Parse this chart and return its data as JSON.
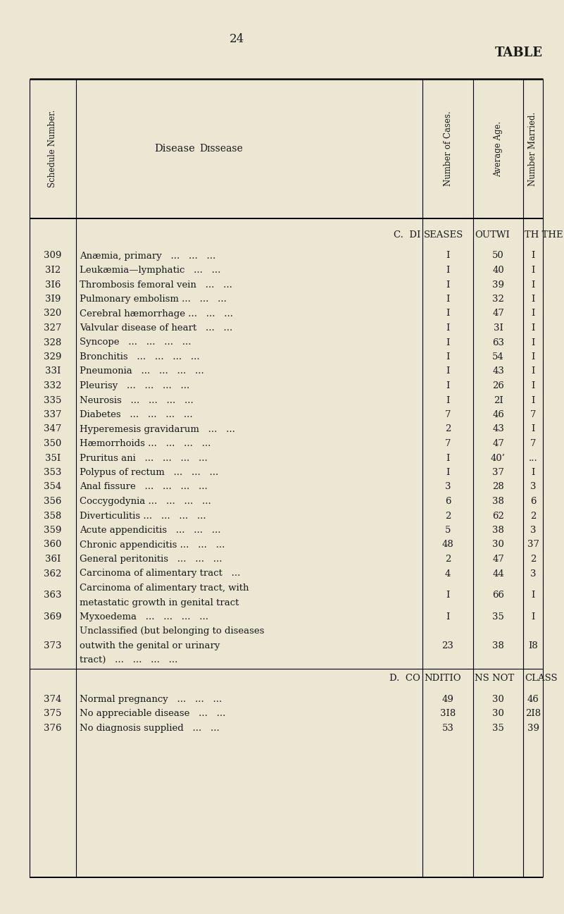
{
  "page_number": "24",
  "title": "TABLE",
  "bg_color": "#ebe7d3",
  "text_color": "#1a1a1a",
  "rows_c": [
    {
      "num": "309",
      "disease": "Anæmia, primary   ...   ...   ...",
      "cases": "I",
      "age": "50",
      "married": "I"
    },
    {
      "num": "3I2",
      "disease": "Leukæmia—lymphatic   ...   ...",
      "cases": "I",
      "age": "40",
      "married": "I"
    },
    {
      "num": "3I6",
      "disease": "Thrombosis femoral vein   ...   ...",
      "cases": "I",
      "age": "39",
      "married": "I"
    },
    {
      "num": "3I9",
      "disease": "Pulmonary embolism ...   ...   ...",
      "cases": "I",
      "age": "32",
      "married": "I"
    },
    {
      "num": "320",
      "disease": "Cerebral hæmorrhage ...   ...   ...",
      "cases": "I",
      "age": "47",
      "married": "I"
    },
    {
      "num": "327",
      "disease": "Valvular disease of heart   ...   ...",
      "cases": "I",
      "age": "3I",
      "married": "I"
    },
    {
      "num": "328",
      "disease": "Syncope   ...   ...   ...   ...",
      "cases": "I",
      "age": "63",
      "married": "I"
    },
    {
      "num": "329",
      "disease": "Bronchitis   ...   ...   ...   ...",
      "cases": "I",
      "age": "54",
      "married": "I"
    },
    {
      "num": "33I",
      "disease": "Pneumonia   ...   ...   ...   ...",
      "cases": "I",
      "age": "43",
      "married": "I"
    },
    {
      "num": "332",
      "disease": "Pleurisy   ...   ...   ...   ...",
      "cases": "I",
      "age": "26",
      "married": "I"
    },
    {
      "num": "335",
      "disease": "Neurosis   ...   ...   ...   ...",
      "cases": "I",
      "age": "2I",
      "married": "I"
    },
    {
      "num": "337",
      "disease": "Diabetes   ...   ...   ...   ...",
      "cases": "7",
      "age": "46",
      "married": "7"
    },
    {
      "num": "347",
      "disease": "Hyperemesis gravidarum   ...   ...",
      "cases": "2",
      "age": "43",
      "married": "I"
    },
    {
      "num": "350",
      "disease": "Hæmorrhoids ...   ...   ...   ...",
      "cases": "7",
      "age": "47",
      "married": "7"
    },
    {
      "num": "35I",
      "disease": "Pruritus ani   ...   ...   ...   ...",
      "cases": "I",
      "age": "40’",
      "married": "..."
    },
    {
      "num": "353",
      "disease": "Polypus of rectum   ...   ...   ...",
      "cases": "I",
      "age": "37",
      "married": "I"
    },
    {
      "num": "354",
      "disease": "Anal fissure   ...   ...   ...   ...",
      "cases": "3",
      "age": "28",
      "married": "3"
    },
    {
      "num": "356",
      "disease": "Coccygodynia ...   ...   ...   ...",
      "cases": "6",
      "age": "38",
      "married": "6"
    },
    {
      "num": "358",
      "disease": "Diverticulitis ...   ...   ...   ...",
      "cases": "2",
      "age": "62",
      "married": "2"
    },
    {
      "num": "359",
      "disease": "Acute appendicitis   ...   ...   ...",
      "cases": "5",
      "age": "38",
      "married": "3"
    },
    {
      "num": "360",
      "disease": "Chronic appendicitis ...   ...   ...",
      "cases": "48",
      "age": "30",
      "married": "37"
    },
    {
      "num": "36I",
      "disease": "General peritonitis   ...   ...   ...",
      "cases": "2",
      "age": "47",
      "married": "2"
    },
    {
      "num": "362",
      "disease": "Carcinoma of alimentary tract   ...",
      "cases": "4",
      "age": "44",
      "married": "3"
    },
    {
      "num": "363",
      "disease": "Carcinoma of alimentary tract, with\n        metastatic growth in genital tract",
      "cases": "I",
      "age": "66",
      "married": "I"
    },
    {
      "num": "369",
      "disease": "Myxoedema   ...   ...   ...   ...",
      "cases": "I",
      "age": "35",
      "married": "I"
    },
    {
      "num": "373",
      "disease": "Unclassified (but belonging to diseases\n        outwith the genital or urinary\n        tract)   ...   ...   ...   ...",
      "cases": "23",
      "age": "38",
      "married": "I8"
    }
  ],
  "rows_d": [
    {
      "num": "374",
      "disease": "Normal pregnancy   ...   ...   ...",
      "cases": "49",
      "age": "30",
      "married": "46"
    },
    {
      "num": "375",
      "disease": "No appreciable disease   ...   ...",
      "cases": "3I8",
      "age": "30",
      "married": "2I8"
    },
    {
      "num": "376",
      "disease": "No diagnosis supplied   ...   ...",
      "cases": "53",
      "age": "35",
      "married": "39"
    }
  ]
}
